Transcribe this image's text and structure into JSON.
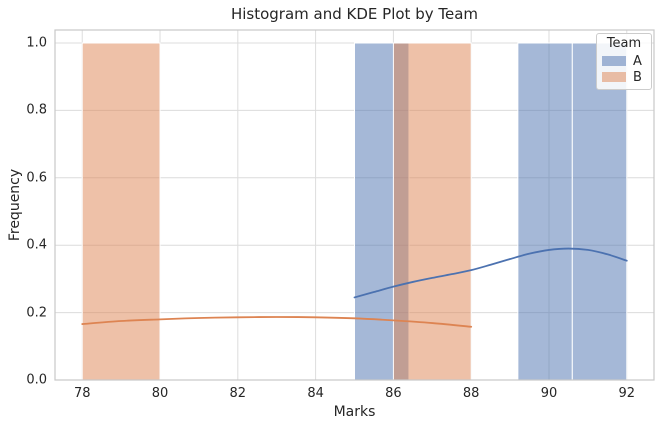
{
  "chart_data": {
    "type": "bar",
    "subtype": "histogram-with-kde",
    "title": "Histogram and KDE Plot by Team",
    "xlabel": "Marks",
    "ylabel": "Frequency",
    "xlim": [
      77.3,
      92.7
    ],
    "ylim": [
      0,
      1.0386
    ],
    "xticks": [
      "78",
      "80",
      "82",
      "84",
      "86",
      "88",
      "90",
      "92"
    ],
    "yticks": [
      "0.0",
      "0.2",
      "0.4",
      "0.6",
      "0.8",
      "1.0"
    ],
    "grid": true,
    "bar_alpha": 0.5,
    "legend": {
      "title": "Team",
      "position": "upper right",
      "entries": [
        {
          "label": "A",
          "color": "#4C72B0"
        },
        {
          "label": "B",
          "color": "#DD8452"
        }
      ]
    },
    "series": [
      {
        "name": "A",
        "color": "#4C72B0",
        "bars": [
          {
            "x0": 85.0,
            "x1": 86.4,
            "height": 1.0
          },
          {
            "x0": 89.2,
            "x1": 90.6,
            "height": 1.0
          },
          {
            "x0": 90.6,
            "x1": 92.0,
            "height": 1.0
          }
        ],
        "kde": [
          [
            85,
            0.245
          ],
          [
            85.5,
            0.261
          ],
          [
            86,
            0.277
          ],
          [
            86.5,
            0.291
          ],
          [
            87,
            0.303
          ],
          [
            87.5,
            0.314
          ],
          [
            88,
            0.326
          ],
          [
            88.5,
            0.342
          ],
          [
            89,
            0.359
          ],
          [
            89.5,
            0.375
          ],
          [
            90,
            0.386
          ],
          [
            90.5,
            0.39
          ],
          [
            91,
            0.386
          ],
          [
            91.5,
            0.373
          ],
          [
            92,
            0.354
          ]
        ]
      },
      {
        "name": "B",
        "color": "#DD8452",
        "bars": [
          {
            "x0": 78.0,
            "x1": 80.0,
            "height": 1.0
          },
          {
            "x0": 86.0,
            "x1": 88.0,
            "height": 1.0
          }
        ],
        "kde": [
          [
            78,
            0.166
          ],
          [
            79,
            0.175
          ],
          [
            80,
            0.18
          ],
          [
            81,
            0.184
          ],
          [
            82,
            0.186
          ],
          [
            83,
            0.187
          ],
          [
            84,
            0.186
          ],
          [
            85,
            0.183
          ],
          [
            86,
            0.177
          ],
          [
            87,
            0.169
          ],
          [
            88,
            0.158
          ]
        ]
      }
    ],
    "style": {
      "grid_color": "#dcdcdc",
      "border_color": "#c8c8c8",
      "text_color": "#262626",
      "kde_linewidth": 1.8
    }
  }
}
